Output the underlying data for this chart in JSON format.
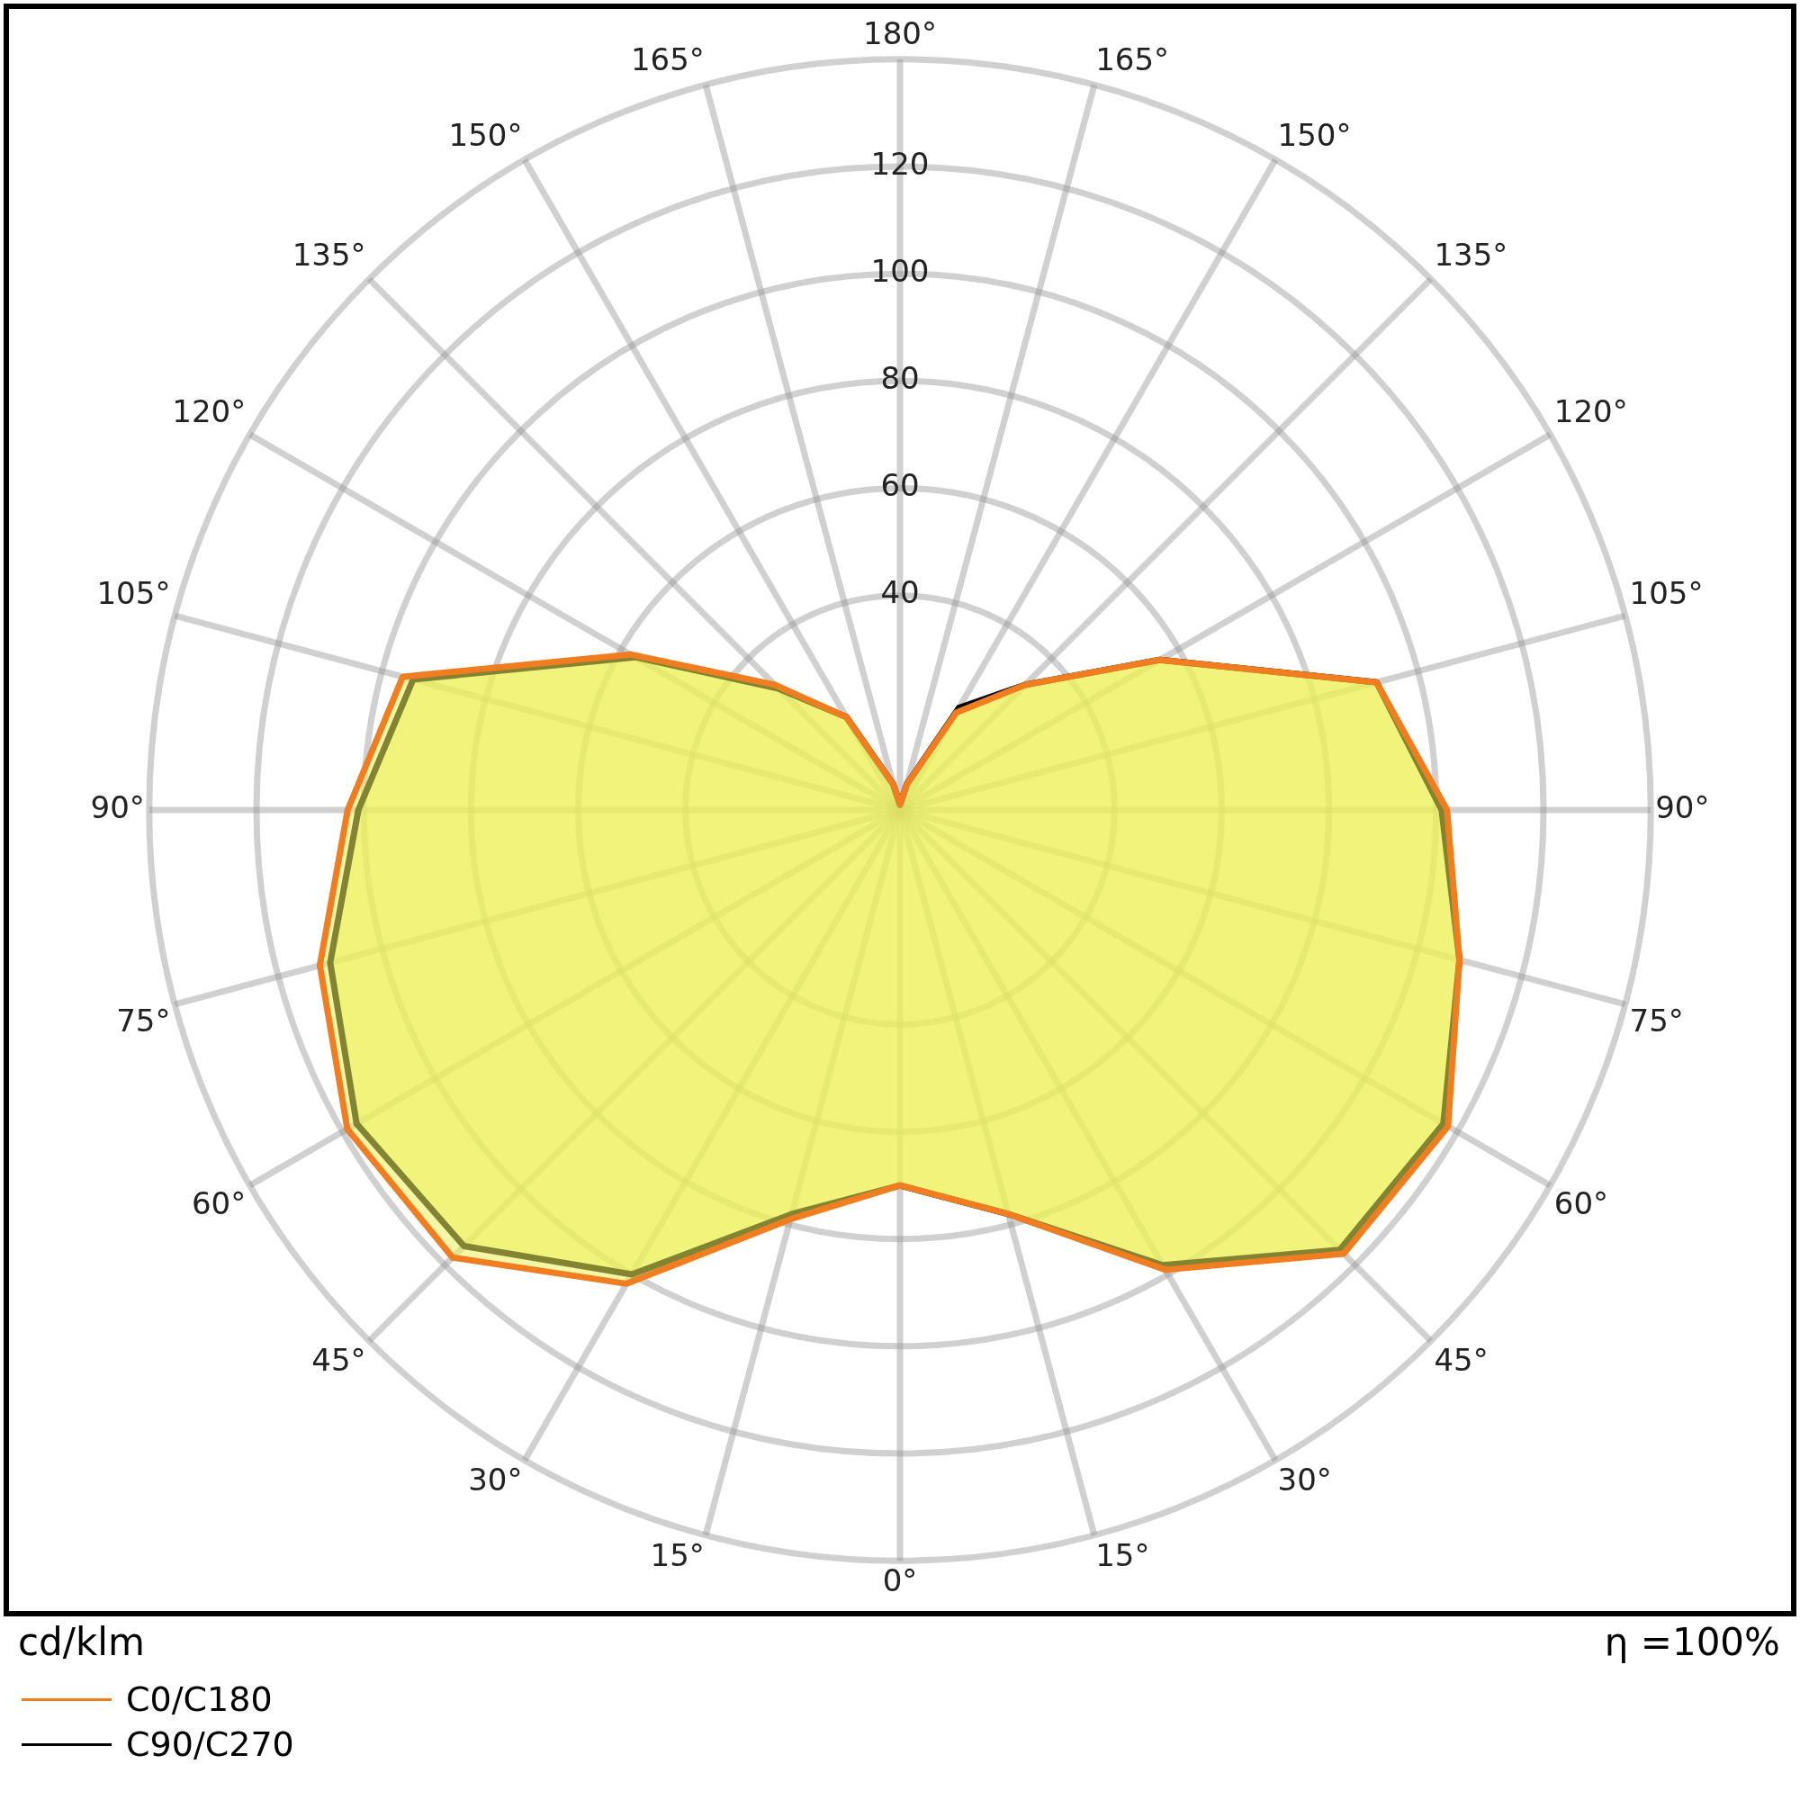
{
  "chart_data": {
    "type": "radar",
    "categories": [
      "180°",
      "165°",
      "150°",
      "135°",
      "120°",
      "105°",
      "90°",
      "75°",
      "60°",
      "45°",
      "30°",
      "15°",
      "0°",
      "15°",
      "30°",
      "45°",
      "60°",
      "75°",
      "90°",
      "105°",
      "120°",
      "135°",
      "150°",
      "165°"
    ],
    "series": [
      {
        "name": "C0/C180",
        "color": "#f07d20",
        "values": [
          1,
          5,
          21,
          33,
          56,
          92,
          102,
          108,
          118,
          117,
          99,
          78,
          70,
          79,
          102,
          118,
          119,
          112,
          103,
          96,
          58,
          33,
          20,
          5
        ]
      },
      {
        "name": "C90/C270",
        "color": "#000000",
        "values": [
          1,
          5,
          22,
          33,
          56,
          92,
          101,
          108,
          117,
          116,
          98,
          78,
          70,
          78,
          100,
          115,
          117,
          110,
          101,
          94,
          57,
          32,
          20,
          5
        ]
      }
    ],
    "ylim": [
      0,
      140
    ],
    "yticks": [
      40,
      60,
      80,
      100,
      120
    ],
    "grid": true,
    "legend": "bottom left",
    "marker": "none",
    "line_style": "solid",
    "annotations": [
      "cd/klm",
      "η =100%"
    ]
  }
}
